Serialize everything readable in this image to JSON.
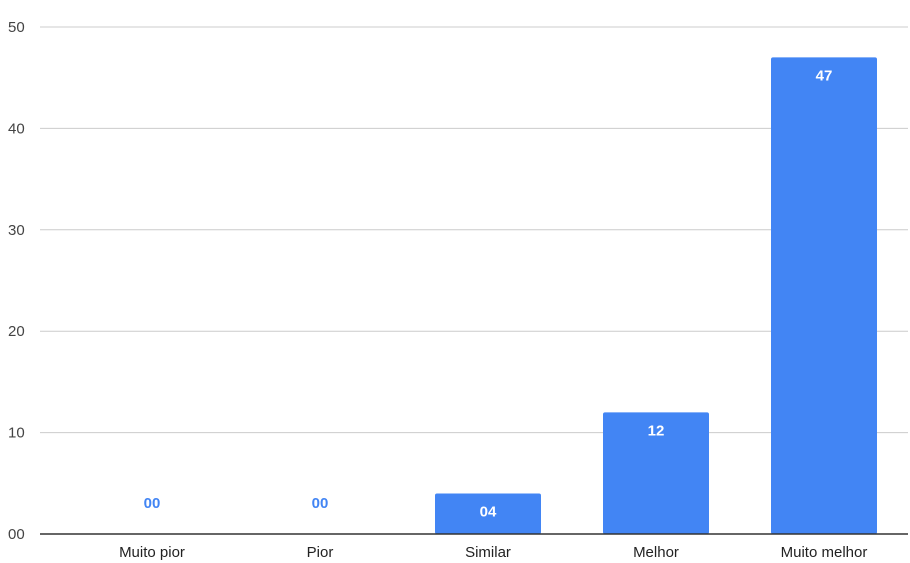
{
  "chart_data": {
    "type": "bar",
    "categories": [
      "Muito pior",
      "Pior",
      "Similar",
      "Melhor",
      "Muito melhor"
    ],
    "values": [
      0,
      0,
      4,
      12,
      47
    ],
    "value_labels": [
      "00",
      "00",
      "04",
      "12",
      "47"
    ],
    "title": "",
    "xlabel": "",
    "ylabel": "",
    "ylim": [
      0,
      50
    ],
    "yticks": [
      0,
      10,
      20,
      30,
      40,
      50
    ],
    "ytick_labels": [
      "00",
      "10",
      "20",
      "30",
      "40",
      "50"
    ],
    "grid": true,
    "legend": "none",
    "bar_color": "#4285f4",
    "gridline_color": "#cccccc",
    "baseline_color": "#333333"
  }
}
